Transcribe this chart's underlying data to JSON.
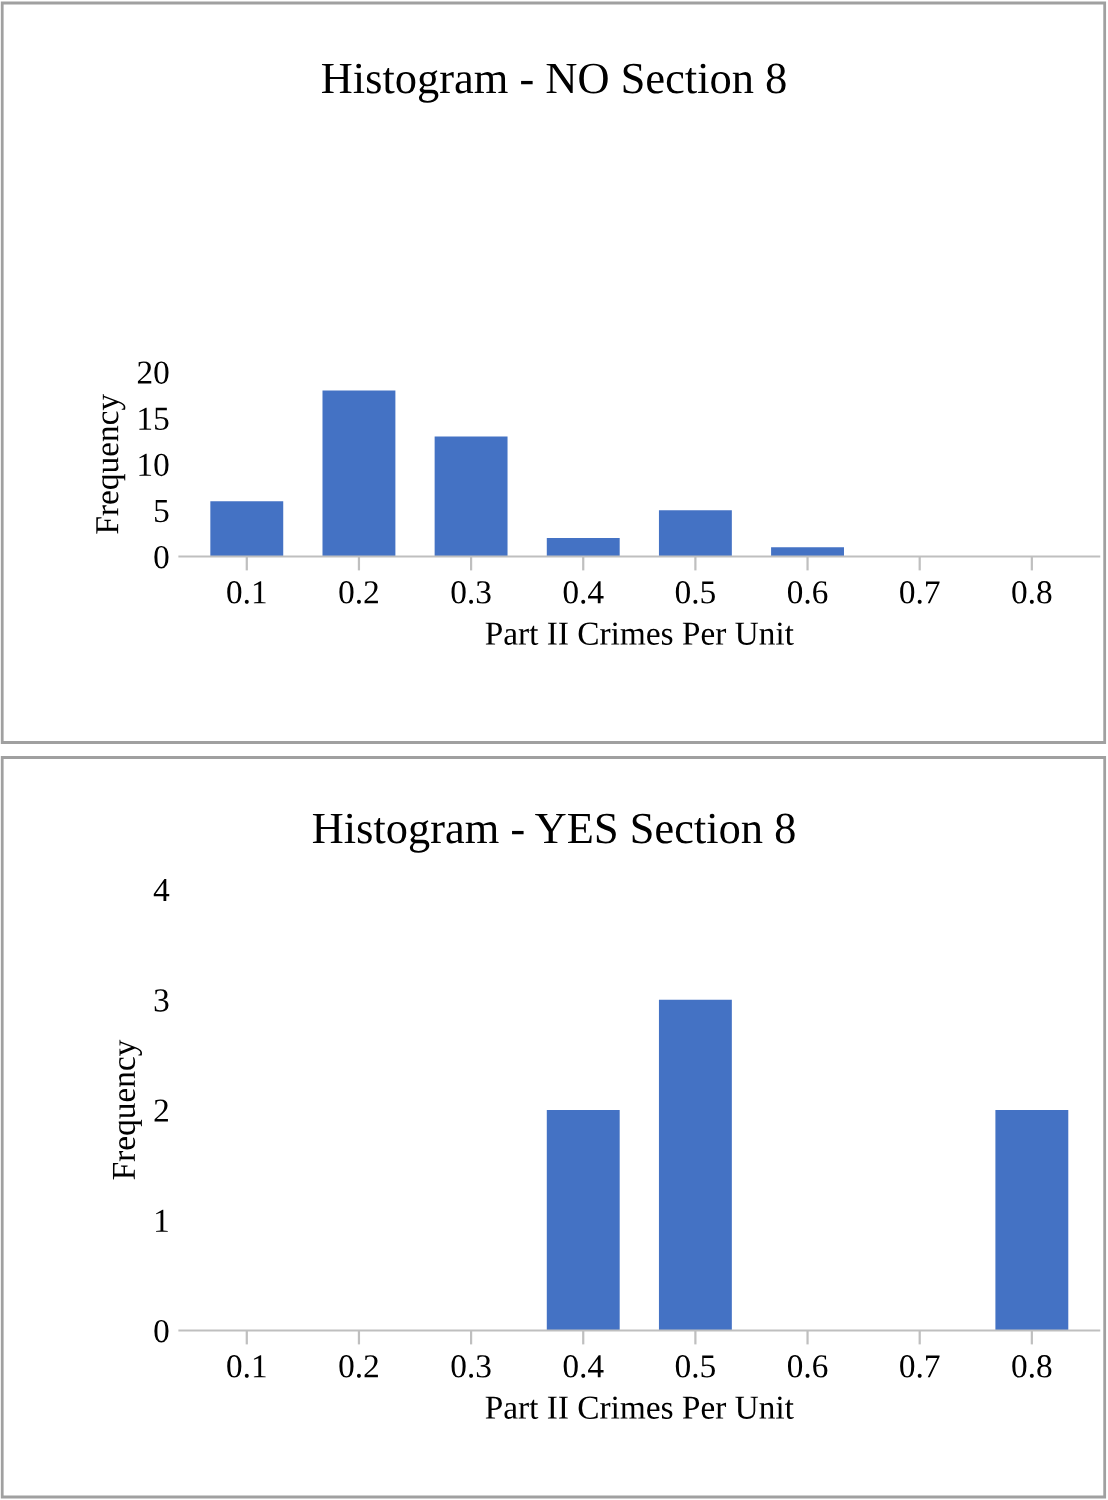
{
  "chart_data": [
    {
      "type": "bar",
      "title": "Histogram - NO Section 8",
      "xlabel": "Part II Crimes Per Unit",
      "ylabel": "Frequency",
      "categories": [
        "0.1",
        "0.2",
        "0.3",
        "0.4",
        "0.5",
        "0.6",
        "0.7",
        "0.8"
      ],
      "values": [
        6,
        18,
        13,
        2,
        5,
        1,
        0,
        0
      ],
      "color": "#4472c4",
      "ylim": [
        0,
        20
      ],
      "yticks": [
        0,
        5,
        10,
        15,
        20
      ],
      "grid": false,
      "legend": false
    },
    {
      "type": "bar",
      "title": "Histogram - YES Section 8",
      "xlabel": "Part II Crimes Per Unit",
      "ylabel": "Frequency",
      "categories": [
        "0.1",
        "0.2",
        "0.3",
        "0.4",
        "0.5",
        "0.6",
        "0.7",
        "0.8"
      ],
      "values": [
        0,
        0,
        0,
        2,
        3,
        0,
        0,
        2
      ],
      "color": "#4472c4",
      "ylim": [
        0,
        4
      ],
      "yticks": [
        0,
        1,
        2,
        3,
        4
      ],
      "grid": false,
      "legend": false
    }
  ]
}
